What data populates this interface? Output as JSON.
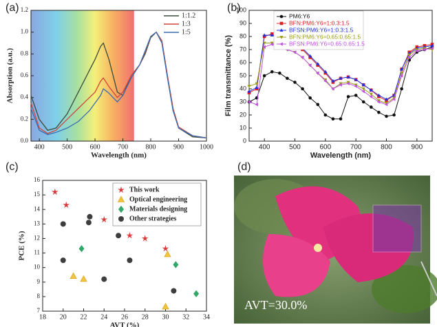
{
  "chart_data": [
    {
      "type": "line",
      "label": "(a)",
      "xlabel": "Wavelength (nm)",
      "ylabel": "Absorption (a.u.)",
      "xlim": [
        370,
        1000
      ],
      "xticks": [
        400,
        500,
        600,
        700,
        800,
        900,
        1000
      ],
      "ylim": [
        0,
        1.2
      ],
      "yticks": [
        {
          "value": 0,
          "label": "0.0"
        },
        0.2,
        0.4,
        0.6,
        0.8,
        {
          "value": 1,
          "label": "1.0"
        },
        1.2
      ],
      "background_band": [
        370,
        740
      ],
      "legend": "upper right",
      "x": [
        370,
        400,
        430,
        460,
        500,
        540,
        580,
        600,
        620,
        630,
        650,
        680,
        700,
        730,
        760,
        780,
        800,
        820,
        840,
        860,
        880,
        900,
        950,
        1000
      ],
      "series": [
        {
          "name": "1:1.2",
          "color": "#3a4a3a",
          "values": [
            0.42,
            0.2,
            0.1,
            0.12,
            0.25,
            0.45,
            0.65,
            0.75,
            0.87,
            0.9,
            0.75,
            0.45,
            0.42,
            0.6,
            0.7,
            0.8,
            0.95,
            1.0,
            0.92,
            0.6,
            0.3,
            0.12,
            0.04,
            0.03
          ]
        },
        {
          "name": "1:3",
          "color": "#d0443a",
          "values": [
            0.35,
            0.12,
            0.07,
            0.1,
            0.2,
            0.3,
            0.4,
            0.45,
            0.55,
            0.58,
            0.5,
            0.4,
            0.45,
            0.6,
            0.7,
            0.82,
            0.96,
            1.0,
            0.92,
            0.6,
            0.3,
            0.13,
            0.05,
            0.03
          ]
        },
        {
          "name": "1:5",
          "color": "#3a6cb0",
          "values": [
            0.3,
            0.1,
            0.06,
            0.08,
            0.12,
            0.18,
            0.28,
            0.35,
            0.42,
            0.48,
            0.44,
            0.36,
            0.42,
            0.58,
            0.7,
            0.83,
            0.96,
            1.0,
            0.9,
            0.58,
            0.28,
            0.12,
            0.05,
            0.03
          ]
        }
      ]
    },
    {
      "type": "line",
      "label": "(b)",
      "xlabel": "Wavelength (nm)",
      "ylabel": "Film transmittance (%)",
      "xlim": [
        350,
        950
      ],
      "xticks": [
        400,
        500,
        600,
        700,
        800,
        900
      ],
      "ylim": [
        0,
        100
      ],
      "yticks": [
        0,
        10,
        20,
        30,
        40,
        50,
        60,
        70,
        80,
        90,
        100
      ],
      "legend": "upper left",
      "x": [
        350,
        375,
        400,
        425,
        450,
        475,
        500,
        525,
        550,
        575,
        600,
        625,
        650,
        675,
        700,
        725,
        750,
        775,
        800,
        825,
        850,
        875,
        900,
        925,
        950
      ],
      "series": [
        {
          "name": "PM6:Y6",
          "color": "#111111",
          "marker": "circle",
          "values": [
            30,
            33,
            50,
            53,
            52,
            48,
            45,
            40,
            33,
            28,
            20,
            17,
            17,
            34,
            35,
            30,
            26,
            22,
            19,
            20,
            40,
            62,
            68,
            70,
            72
          ]
        },
        {
          "name": "BFN:PM6:Y6=1:0.3:1.5",
          "color": "#e02020",
          "marker": "square",
          "values": [
            37,
            40,
            80,
            82,
            78,
            76,
            74,
            70,
            64,
            58,
            52,
            45,
            48,
            49,
            47,
            43,
            39,
            34,
            31,
            35,
            55,
            68,
            72,
            73,
            74
          ]
        },
        {
          "name": "BFSN:PM6:Y6=1:0.3:1.5",
          "color": "#2030e0",
          "marker": "triangle",
          "values": [
            38,
            41,
            81,
            81,
            79,
            77,
            75,
            71,
            65,
            59,
            53,
            46,
            48,
            49,
            47,
            43,
            39,
            35,
            32,
            35,
            55,
            67,
            71,
            72,
            73
          ]
        },
        {
          "name": "BFN:PM6:Y6=0.65:0.65:1.5",
          "color": "#9a9a18",
          "marker": "down-triangle",
          "values": [
            42,
            44,
            75,
            75,
            72,
            70,
            68,
            64,
            58,
            52,
            47,
            40,
            44,
            45,
            43,
            40,
            36,
            31,
            29,
            33,
            52,
            66,
            70,
            71,
            70
          ]
        },
        {
          "name": "BFSN:PM6:Y6=0.65:0.65:1.5",
          "color": "#c050e0",
          "marker": "triangle-left",
          "values": [
            30,
            28,
            72,
            74,
            72,
            70,
            68,
            64,
            58,
            52,
            46,
            40,
            43,
            44,
            42,
            38,
            34,
            30,
            28,
            32,
            50,
            64,
            69,
            70,
            71
          ]
        }
      ]
    },
    {
      "type": "scatter",
      "label": "(c)",
      "xlabel": "AVT (%)",
      "ylabel": "PCE (%)",
      "xlim": [
        18,
        34
      ],
      "xticks": [
        18,
        20,
        22,
        24,
        26,
        28,
        30,
        32,
        34
      ],
      "ylim": [
        7,
        16
      ],
      "yticks": [
        7,
        8,
        9,
        10,
        11,
        12,
        13,
        14,
        15,
        16
      ],
      "legend": "upper right",
      "series": [
        {
          "name": "This work",
          "color": "#d83a3a",
          "marker": "star",
          "x": [
            19.2,
            20.3,
            24,
            26.5,
            28,
            30
          ],
          "values": [
            15.2,
            14.3,
            13.3,
            12.2,
            12,
            11.3
          ]
        },
        {
          "name": "Optical engineering",
          "color": "#f2c440",
          "marker": "triangle",
          "x": [
            21,
            22,
            30,
            30.2
          ],
          "values": [
            9.4,
            9.2,
            7.3,
            10.9
          ]
        },
        {
          "name": "Materials designing",
          "color": "#2fa86a",
          "marker": "diamond",
          "x": [
            21.8,
            31,
            33
          ],
          "values": [
            11.3,
            10.2,
            8.2
          ]
        },
        {
          "name": "Other strategies",
          "color": "#3e3e3e",
          "marker": "circle",
          "x": [
            20,
            20,
            22.5,
            22.6,
            24,
            25.4,
            26.5,
            30.8
          ],
          "values": [
            13,
            10.5,
            13.1,
            13.5,
            9.2,
            12.2,
            10.5,
            8.4
          ]
        }
      ]
    }
  ],
  "photo": {
    "label": "(d)",
    "caption": "AVT=30.0%"
  }
}
